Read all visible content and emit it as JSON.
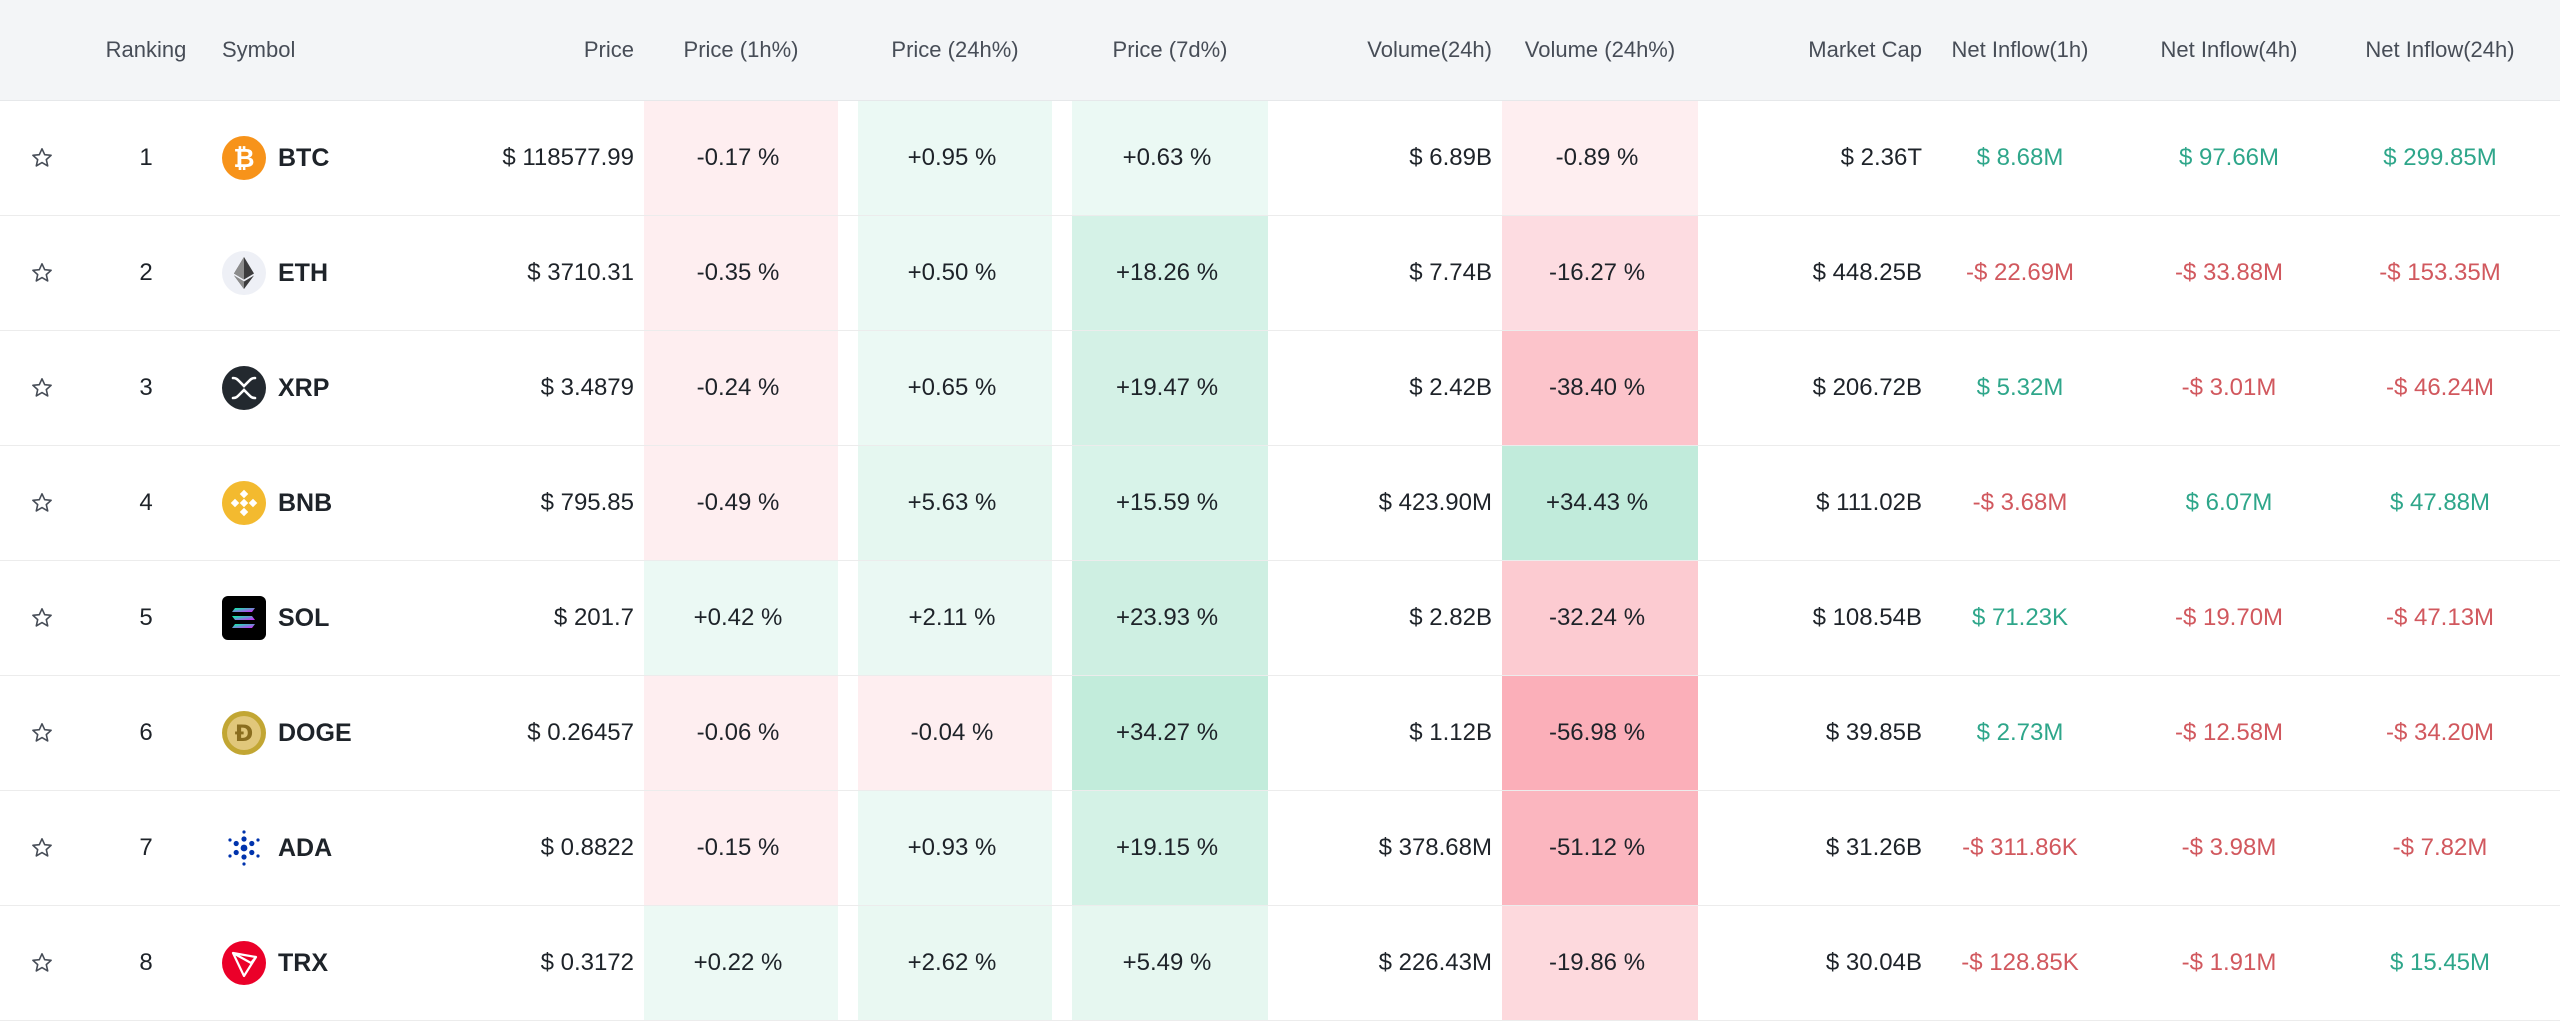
{
  "headers": {
    "ranking": "Ranking",
    "symbol": "Symbol",
    "price": "Price",
    "price_1h": "Price (1h%)",
    "price_24h": "Price (24h%)",
    "price_7d": "Price (7d%)",
    "volume_24h": "Volume(24h)",
    "volume_24h_pct": "Volume (24h%)",
    "market_cap": "Market Cap",
    "net_inflow_1h": "Net Inflow(1h)",
    "net_inflow_4h": "Net Inflow(4h)",
    "net_inflow_24h": "Net Inflow(24h)"
  },
  "rows": [
    {
      "rank": "1",
      "symbol": "BTC",
      "icon": "bitcoin-icon",
      "price": "$ 118577.99",
      "p1h": "-0.17 %",
      "p1h_val": -0.17,
      "p24h": "+0.95 %",
      "p24h_val": 0.95,
      "p7d": "+0.63 %",
      "p7d_val": 0.63,
      "vol": "$ 6.89B",
      "vol24": "-0.89 %",
      "vol24_val": -0.89,
      "mcap": "$ 2.36T",
      "n1h": "$ 8.68M",
      "n4h": "$ 97.66M",
      "n24h": "$ 299.85M"
    },
    {
      "rank": "2",
      "symbol": "ETH",
      "icon": "ethereum-icon",
      "price": "$ 3710.31",
      "p1h": "-0.35 %",
      "p1h_val": -0.35,
      "p24h": "+0.50 %",
      "p24h_val": 0.5,
      "p7d": "+18.26 %",
      "p7d_val": 18.26,
      "vol": "$ 7.74B",
      "vol24": "-16.27 %",
      "vol24_val": -16.27,
      "mcap": "$ 448.25B",
      "n1h": "-$ 22.69M",
      "n4h": "-$ 33.88M",
      "n24h": "-$ 153.35M"
    },
    {
      "rank": "3",
      "symbol": "XRP",
      "icon": "xrp-icon",
      "price": "$ 3.4879",
      "p1h": "-0.24 %",
      "p1h_val": -0.24,
      "p24h": "+0.65 %",
      "p24h_val": 0.65,
      "p7d": "+19.47 %",
      "p7d_val": 19.47,
      "vol": "$ 2.42B",
      "vol24": "-38.40 %",
      "vol24_val": -38.4,
      "mcap": "$ 206.72B",
      "n1h": "$ 5.32M",
      "n4h": "-$ 3.01M",
      "n24h": "-$ 46.24M"
    },
    {
      "rank": "4",
      "symbol": "BNB",
      "icon": "bnb-icon",
      "price": "$ 795.85",
      "p1h": "-0.49 %",
      "p1h_val": -0.49,
      "p24h": "+5.63 %",
      "p24h_val": 5.63,
      "p7d": "+15.59 %",
      "p7d_val": 15.59,
      "vol": "$ 423.90M",
      "vol24": "+34.43 %",
      "vol24_val": 34.43,
      "mcap": "$ 111.02B",
      "n1h": "-$ 3.68M",
      "n4h": "$ 6.07M",
      "n24h": "$ 47.88M"
    },
    {
      "rank": "5",
      "symbol": "SOL",
      "icon": "solana-icon",
      "price": "$ 201.7",
      "p1h": "+0.42 %",
      "p1h_val": 0.42,
      "p24h": "+2.11 %",
      "p24h_val": 2.11,
      "p7d": "+23.93 %",
      "p7d_val": 23.93,
      "vol": "$ 2.82B",
      "vol24": "-32.24 %",
      "vol24_val": -32.24,
      "mcap": "$ 108.54B",
      "n1h": "$ 71.23K",
      "n4h": "-$ 19.70M",
      "n24h": "-$ 47.13M"
    },
    {
      "rank": "6",
      "symbol": "DOGE",
      "icon": "dogecoin-icon",
      "price": "$ 0.26457",
      "p1h": "-0.06 %",
      "p1h_val": -0.06,
      "p24h": "-0.04 %",
      "p24h_val": -0.04,
      "p7d": "+34.27 %",
      "p7d_val": 34.27,
      "vol": "$ 1.12B",
      "vol24": "-56.98 %",
      "vol24_val": -56.98,
      "mcap": "$ 39.85B",
      "n1h": "$ 2.73M",
      "n4h": "-$ 12.58M",
      "n24h": "-$ 34.20M"
    },
    {
      "rank": "7",
      "symbol": "ADA",
      "icon": "cardano-icon",
      "price": "$ 0.8822",
      "p1h": "-0.15 %",
      "p1h_val": -0.15,
      "p24h": "+0.93 %",
      "p24h_val": 0.93,
      "p7d": "+19.15 %",
      "p7d_val": 19.15,
      "vol": "$ 378.68M",
      "vol24": "-51.12 %",
      "vol24_val": -51.12,
      "mcap": "$ 31.26B",
      "n1h": "-$ 311.86K",
      "n4h": "-$ 3.98M",
      "n24h": "-$ 7.82M"
    },
    {
      "rank": "8",
      "symbol": "TRX",
      "icon": "tron-icon",
      "price": "$ 0.3172",
      "p1h": "+0.22 %",
      "p1h_val": 0.22,
      "p24h": "+2.62 %",
      "p24h_val": 2.62,
      "p7d": "+5.49 %",
      "p7d_val": 5.49,
      "vol": "$ 226.43M",
      "vol24": "-19.86 %",
      "vol24_val": -19.86,
      "mcap": "$ 30.04B",
      "n1h": "-$ 128.85K",
      "n4h": "-$ 1.91M",
      "n24h": "$ 15.45M"
    }
  ],
  "colors": {
    "positive_text": "#2ea68a",
    "negative_text": "#d1585e",
    "header_bg": "#f3f5f7",
    "positive_heat": "#2ebd85",
    "negative_heat": "#f6465d"
  }
}
